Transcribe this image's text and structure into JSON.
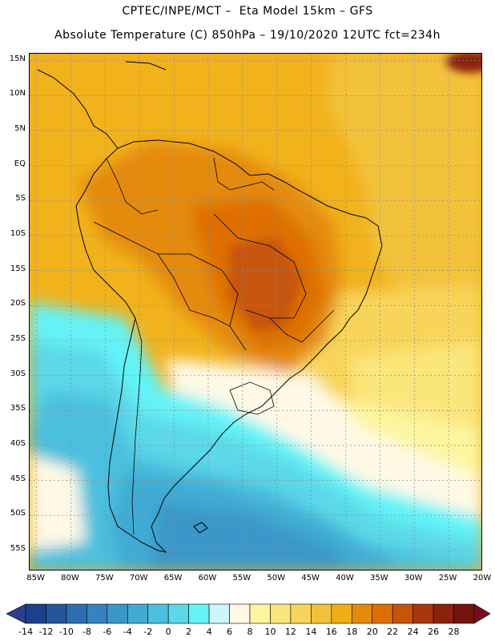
{
  "header": {
    "line1": "CPTEC/INPE/MCT –  Eta Model 15km – GFS",
    "line2": "Absolute Temperature (C) 850hPa – 19/10/2020 12UTC fct=234h"
  },
  "map": {
    "region": "South America",
    "lon_range": [
      -86,
      -20
    ],
    "lat_range": [
      -58,
      16
    ],
    "lat_labels": [
      "15N",
      "10N",
      "5N",
      "EQ",
      "5S",
      "10S",
      "15S",
      "20S",
      "25S",
      "30S",
      "35S",
      "40S",
      "45S",
      "50S",
      "55S"
    ],
    "lat_values": [
      15,
      10,
      5,
      0,
      -5,
      -10,
      -15,
      -20,
      -25,
      -30,
      -35,
      -40,
      -45,
      -50,
      -55
    ],
    "lon_labels": [
      "85W",
      "80W",
      "75W",
      "70W",
      "65W",
      "60W",
      "55W",
      "50W",
      "45W",
      "40W",
      "35W",
      "30W",
      "25W",
      "20W"
    ],
    "lon_values": [
      -85,
      -80,
      -75,
      -70,
      -65,
      -60,
      -55,
      -50,
      -45,
      -40,
      -35,
      -30,
      -25,
      -20
    ]
  },
  "colorbar": {
    "labels": [
      "-14",
      "-12",
      "-10",
      "-8",
      "-6",
      "-4",
      "-2",
      "0",
      "2",
      "4",
      "6",
      "8",
      "10",
      "12",
      "14",
      "16",
      "18",
      "20",
      "22",
      "24",
      "26",
      "28"
    ],
    "colors": [
      "#1d3f8c",
      "#26559c",
      "#2f6eae",
      "#3582bf",
      "#3b97c9",
      "#40abd4",
      "#4bc0de",
      "#5bd8e8",
      "#63f3f7",
      "#cdf5fb",
      "#fff9e6",
      "#fdf59f",
      "#fbe67c",
      "#f8d55a",
      "#f3c23b",
      "#f1ad14",
      "#e48a0a",
      "#de6e04",
      "#c8540a",
      "#a8380c",
      "#8a220f",
      "#73150e"
    ],
    "under_color": "#2c3e91",
    "over_color": "#7a0a1e"
  }
}
